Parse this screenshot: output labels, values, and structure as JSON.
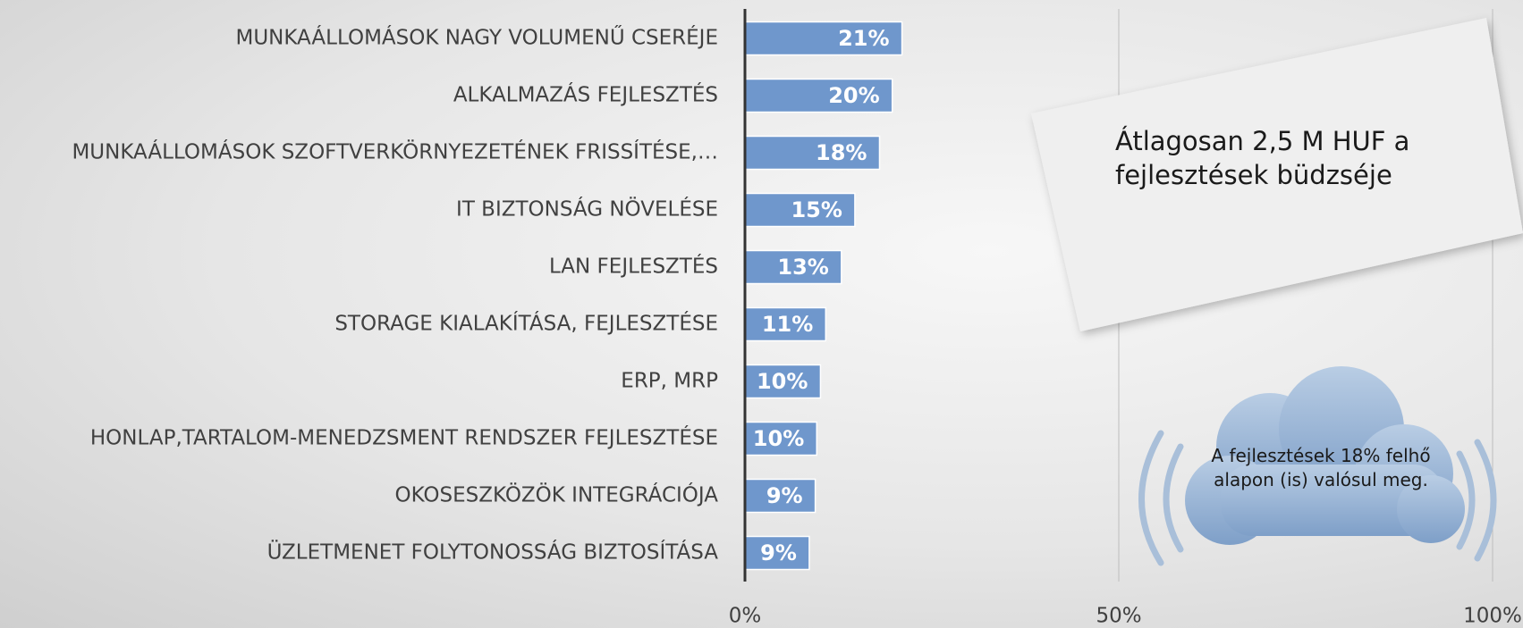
{
  "chart_data": {
    "type": "bar",
    "orientation": "horizontal",
    "categories": [
      "MUNKAÁLLOMÁSOK NAGY VOLUMENŰ CSERÉJE",
      "ALKALMAZÁS FEJLESZTÉS",
      "MUNKAÁLLOMÁSOK SZOFTVERKÖRNYEZETÉNEK FRISSÍTÉSE,…",
      "IT BIZTONSÁG NÖVELÉSE",
      "LAN FEJLESZTÉS",
      "STORAGE KIALAKÍTÁSA, FEJLESZTÉSE",
      "ERP, MRP",
      "HONLAP,TARTALOM-MENEDZSMENT RENDSZER FEJLESZTÉSE",
      "OKOSESZKÖZÖK INTEGRÁCIÓJA",
      "ÜZLETMENET FOLYTONOSSÁG BIZTOSÍTÁSA"
    ],
    "values": [
      21,
      19.7,
      18,
      14.7,
      12.9,
      10.8,
      10.1,
      9.6,
      9.4,
      8.6
    ],
    "value_labels": [
      "21%",
      "20%",
      "18%",
      "15%",
      "13%",
      "11%",
      "10%",
      "10%",
      "9%",
      "9%"
    ],
    "color": "#6f97cc",
    "xlim": [
      0,
      100
    ],
    "xticks": [
      {
        "value": 0,
        "label": "0%"
      },
      {
        "value": 50,
        "label": "50%"
      },
      {
        "value": 100,
        "label": "100%"
      }
    ],
    "grid": true,
    "annotations": [
      "Átlagosan 2,5 M HUF a fejlesztések büdzséje",
      "A fejlesztések 18% felhő alapon (is) valósul meg."
    ]
  }
}
